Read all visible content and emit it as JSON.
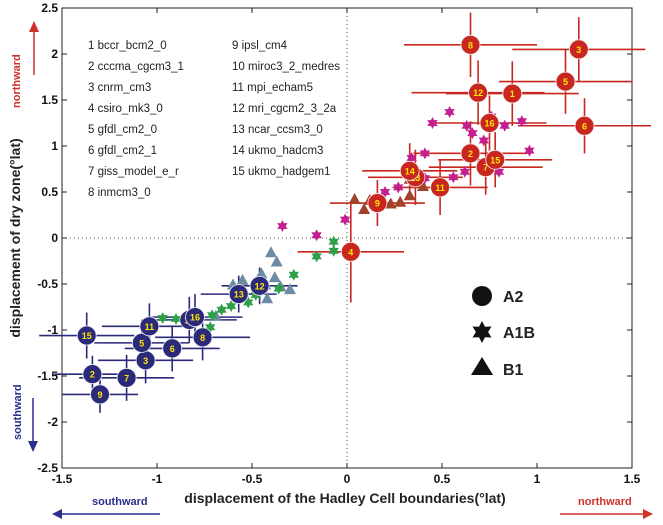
{
  "chart_data": {
    "type": "scatter",
    "xlabel": "displacement of the Hadley Cell boundaries(°lat)",
    "ylabel": "displacement of dry zone(°lat)",
    "xlim": [
      -1.5,
      1.5
    ],
    "ylim": [
      -2.5,
      2.5
    ],
    "x_ticks": [
      "-1.5",
      "-1",
      "-0.5",
      "0",
      "0.5",
      "1",
      "1.5"
    ],
    "y_ticks": [
      "2.5",
      "2",
      "1.5",
      "1",
      "0.5",
      "0",
      "-0.5",
      "-1",
      "-1.5",
      "-2",
      "-2.5"
    ],
    "grid": false,
    "zero_lines": "dotted",
    "colors": {
      "A2_south": "#2b2a7a",
      "A2_north": "#c8261e",
      "A1B_south": "#2fa04a",
      "A1B_north": "#c41f8f",
      "B1_south": "#6e8ba4",
      "B1_north": "#a0432a",
      "label": "#ffe600",
      "northward": "#d0302a",
      "southward": "#2a2e8c"
    },
    "models": [
      "1 bccr_bcm2_0",
      "2 cccma_cgcm3_1",
      "3 cnrm_cm3",
      "4 csiro_mk3_0",
      "5 gfdl_cm2_0",
      "6 gfdl_cm2_1",
      "7 giss_model_e_r",
      "8 inmcm3_0",
      "9 ipsl_cm4",
      "10 miroc3_2_medres",
      "11 mpi_echam5",
      "12 mri_cgcm2_3_2a",
      "13 ncar_ccsm3_0",
      "14 ukmo_hadcm3",
      "15 ukmo_hadgem1"
    ],
    "scenarios": [
      {
        "name": "A2",
        "marker": "circle"
      },
      {
        "name": "A1B",
        "marker": "star"
      },
      {
        "name": "B1",
        "marker": "triangle"
      }
    ],
    "annotations": {
      "north_y": "northward",
      "south_y": "southward",
      "south_x": "southward",
      "north_x": "northward"
    },
    "series": [
      {
        "group": "A2",
        "hemisphere": "north",
        "points": [
          {
            "label": "1",
            "x": 0.87,
            "y": 1.57,
            "xerr": 0.35,
            "yerr": 0.35
          },
          {
            "label": "2",
            "x": 0.65,
            "y": 0.92,
            "xerr": 0.3,
            "yerr": 0.35
          },
          {
            "label": "3",
            "x": 1.22,
            "y": 2.05,
            "xerr": 0.35,
            "yerr": 0.35
          },
          {
            "label": "4",
            "x": 0.02,
            "y": -0.15,
            "xerr": 0.28,
            "yerr": 0.55
          },
          {
            "label": "5",
            "x": 1.15,
            "y": 1.7,
            "xerr": 0.35,
            "yerr": 0.35
          },
          {
            "label": "6",
            "x": 1.25,
            "y": 1.22,
            "xerr": 0.35,
            "yerr": 0.3
          },
          {
            "label": "7",
            "x": 0.73,
            "y": 0.77,
            "xerr": 0.3,
            "yerr": 0.3
          },
          {
            "label": "8",
            "x": 0.65,
            "y": 2.1,
            "xerr": 0.35,
            "yerr": 0.35
          },
          {
            "label": "9",
            "x": 0.16,
            "y": 0.38,
            "xerr": 0.25,
            "yerr": 0.25
          },
          {
            "label": "11",
            "x": 0.49,
            "y": 0.55,
            "xerr": 0.25,
            "yerr": 0.3
          },
          {
            "label": "12",
            "x": 0.69,
            "y": 1.58,
            "xerr": 0.35,
            "yerr": 0.35
          },
          {
            "label": "13",
            "x": 0.36,
            "y": 0.66,
            "xerr": 0.25,
            "yerr": 0.3
          },
          {
            "label": "14",
            "x": 0.33,
            "y": 0.73,
            "xerr": 0.25,
            "yerr": 0.3
          },
          {
            "label": "15",
            "x": 0.78,
            "y": 0.85,
            "xerr": 0.3,
            "yerr": 0.3
          },
          {
            "label": "16",
            "x": 0.75,
            "y": 1.25,
            "xerr": 0.3,
            "yerr": 0.3
          }
        ]
      },
      {
        "group": "A2",
        "hemisphere": "south",
        "points": [
          {
            "label": "2",
            "x": -1.34,
            "y": -1.48,
            "xerr": 0.2,
            "yerr": 0.2
          },
          {
            "label": "3",
            "x": -1.06,
            "y": -1.33,
            "xerr": 0.25,
            "yerr": 0.25
          },
          {
            "label": "5",
            "x": -1.08,
            "y": -1.14,
            "xerr": 0.25,
            "yerr": 0.25
          },
          {
            "label": "6",
            "x": -0.92,
            "y": -1.2,
            "xerr": 0.25,
            "yerr": 0.25
          },
          {
            "label": "7",
            "x": -1.16,
            "y": -1.52,
            "xerr": 0.25,
            "yerr": 0.25
          },
          {
            "label": "8",
            "x": -0.76,
            "y": -1.08,
            "xerr": 0.25,
            "yerr": 0.25
          },
          {
            "label": "9",
            "x": -1.3,
            "y": -1.7,
            "xerr": 0.2,
            "yerr": 0.2
          },
          {
            "label": "10",
            "x": -0.83,
            "y": -0.89,
            "xerr": 0.25,
            "yerr": 0.25
          },
          {
            "label": "11",
            "x": -1.04,
            "y": -0.96,
            "xerr": 0.25,
            "yerr": 0.25
          },
          {
            "label": "12",
            "x": -0.46,
            "y": -0.52,
            "xerr": 0.2,
            "yerr": 0.2
          },
          {
            "label": "13",
            "x": -0.57,
            "y": -0.61,
            "xerr": 0.2,
            "yerr": 0.2
          },
          {
            "label": "15",
            "x": -1.37,
            "y": -1.06,
            "xerr": 0.25,
            "yerr": 0.25
          },
          {
            "label": "16",
            "x": -0.8,
            "y": -0.86,
            "xerr": 0.25,
            "yerr": 0.25
          }
        ]
      },
      {
        "group": "A1B",
        "hemisphere": "north",
        "points": [
          {
            "x": -0.34,
            "y": 0.13
          },
          {
            "x": -0.16,
            "y": 0.03
          },
          {
            "x": -0.01,
            "y": 0.2
          },
          {
            "x": 0.2,
            "y": 0.5
          },
          {
            "x": 0.27,
            "y": 0.55
          },
          {
            "x": 0.41,
            "y": 0.65
          },
          {
            "x": 0.34,
            "y": 0.87
          },
          {
            "x": 0.45,
            "y": 1.25
          },
          {
            "x": 0.54,
            "y": 1.37
          },
          {
            "x": 0.63,
            "y": 1.22
          },
          {
            "x": 0.72,
            "y": 1.06
          },
          {
            "x": 0.76,
            "y": 1.32
          },
          {
            "x": 0.83,
            "y": 1.22
          },
          {
            "x": 0.92,
            "y": 1.27
          },
          {
            "x": 0.96,
            "y": 0.95
          },
          {
            "x": 0.41,
            "y": 0.92
          },
          {
            "x": 0.8,
            "y": 0.72
          },
          {
            "x": 0.62,
            "y": 0.72
          },
          {
            "x": 0.56,
            "y": 0.66
          },
          {
            "x": 0.66,
            "y": 1.14
          }
        ]
      },
      {
        "group": "A1B",
        "hemisphere": "south",
        "points": [
          {
            "x": -0.07,
            "y": -0.04
          },
          {
            "x": -0.07,
            "y": -0.14
          },
          {
            "x": -0.16,
            "y": -0.2
          },
          {
            "x": -0.28,
            "y": -0.4
          },
          {
            "x": -0.36,
            "y": -0.55
          },
          {
            "x": -0.48,
            "y": -0.62
          },
          {
            "x": -0.52,
            "y": -0.7
          },
          {
            "x": -0.61,
            "y": -0.74
          },
          {
            "x": -0.66,
            "y": -0.78
          },
          {
            "x": -0.71,
            "y": -0.84
          },
          {
            "x": -0.9,
            "y": -0.88
          },
          {
            "x": -0.97,
            "y": -0.87
          },
          {
            "x": -0.83,
            "y": -0.93
          },
          {
            "x": -0.72,
            "y": -0.97
          },
          {
            "x": -0.44,
            "y": -0.52
          }
        ]
      },
      {
        "group": "B1",
        "hemisphere": "north",
        "points": [
          {
            "x": 0.04,
            "y": 0.43
          },
          {
            "x": 0.09,
            "y": 0.32
          },
          {
            "x": 0.16,
            "y": 0.35
          },
          {
            "x": 0.23,
            "y": 0.38
          },
          {
            "x": 0.28,
            "y": 0.4
          },
          {
            "x": 0.33,
            "y": 0.47
          },
          {
            "x": 0.33,
            "y": 0.65
          },
          {
            "x": 0.37,
            "y": 0.63
          },
          {
            "x": 0.4,
            "y": 0.57
          },
          {
            "x": 0.12,
            "y": 0.42
          }
        ]
      },
      {
        "group": "B1",
        "hemisphere": "south",
        "points": [
          {
            "x": -0.6,
            "y": -0.5
          },
          {
            "x": -0.55,
            "y": -0.45
          },
          {
            "x": -0.47,
            "y": -0.45
          },
          {
            "x": -0.43,
            "y": -0.5
          },
          {
            "x": -0.38,
            "y": -0.42
          },
          {
            "x": -0.35,
            "y": -0.52
          },
          {
            "x": -0.3,
            "y": -0.55
          },
          {
            "x": -0.4,
            "y": -0.15
          },
          {
            "x": -0.37,
            "y": -0.25
          },
          {
            "x": -0.45,
            "y": -0.38
          },
          {
            "x": -0.42,
            "y": -0.65
          },
          {
            "x": -0.69,
            "y": -0.84
          }
        ]
      }
    ]
  }
}
